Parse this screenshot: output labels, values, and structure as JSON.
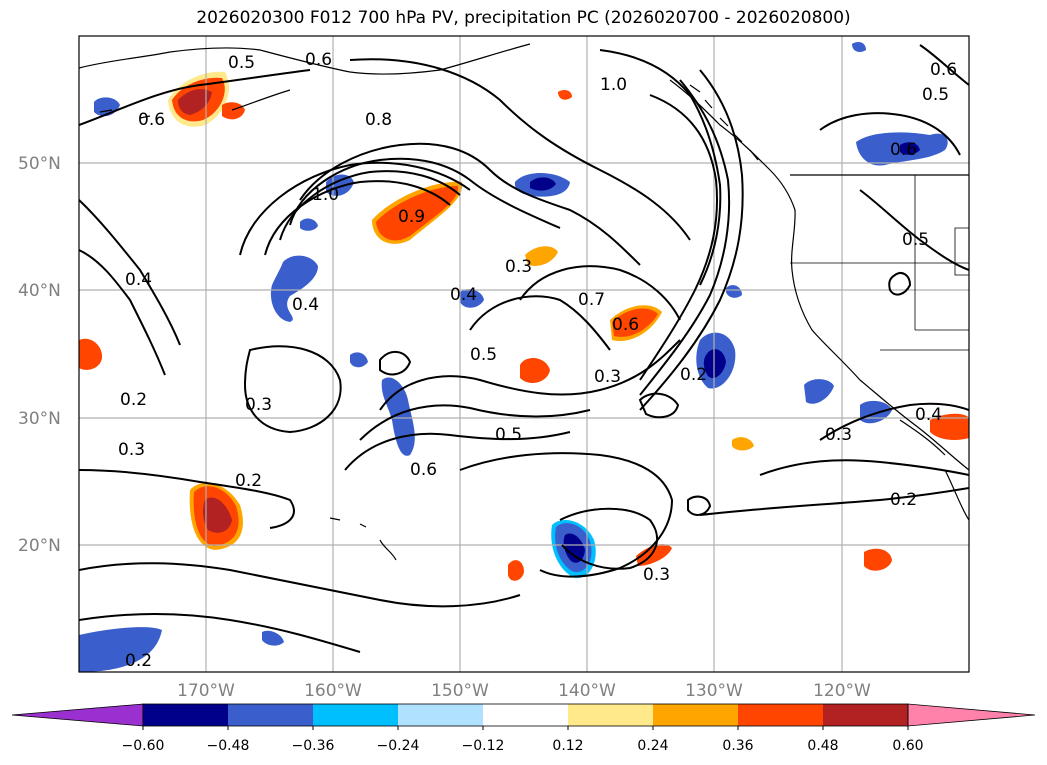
{
  "title": "2026020300 F012 700 hPa PV, precipitation PC (2026020700 - 2026020800)",
  "lat_labels": [
    "50°N",
    "40°N",
    "30°N",
    "20°N"
  ],
  "lon_labels": [
    "170°W",
    "160°W",
    "150°W",
    "140°W",
    "130°W",
    "120°W"
  ],
  "contour_labels": [
    "0.5",
    "0.6",
    "0.6",
    "1.0",
    "0.8",
    "0.6",
    "0.5",
    "0.6",
    "1.0",
    "0.9",
    "0.3",
    "0.4",
    "0.4",
    "0.5",
    "0.7",
    "0.6",
    "0.3",
    "0.2",
    "0.4",
    "0.2",
    "0.3",
    "0.3",
    "0.5",
    "0.6",
    "0.2",
    "0.3",
    "0.3",
    "0.4",
    "0.2",
    "0.2",
    "0.5"
  ],
  "colorbar": {
    "ticks": [
      "−0.60",
      "−0.48",
      "−0.36",
      "−0.24",
      "−0.12",
      "0.12",
      "0.24",
      "0.36",
      "0.48",
      "0.60"
    ],
    "colors": [
      "#9b30d0",
      "#00008b",
      "#3a5fcd",
      "#00bfff",
      "#b0e2ff",
      "#ffffff",
      "#ffe98a",
      "#ffa500",
      "#ff4500",
      "#b22222",
      "#ff82ab"
    ]
  }
}
